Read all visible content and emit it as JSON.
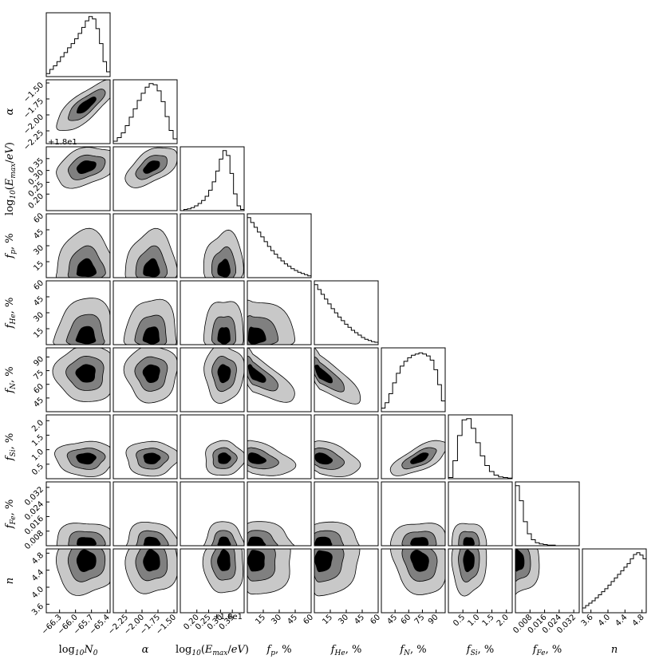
{
  "chart_data": {
    "type": "corner",
    "parameters": [
      {
        "key": "logN0",
        "label": "log10 N0",
        "label_parts": [
          [
            "log",
            "t"
          ],
          [
            "10",
            "sub"
          ],
          [
            "N",
            "it"
          ],
          [
            "0",
            "sub"
          ]
        ],
        "range": [
          -66.55,
          -65.35
        ],
        "ticks": [
          "-66.3",
          "-66.0",
          "-65.7",
          "-65.4"
        ],
        "tick_values": [
          -66.3,
          -66.0,
          -65.7,
          -65.4
        ]
      },
      {
        "key": "alpha",
        "label": "α",
        "label_parts": [
          [
            "α",
            "it"
          ]
        ],
        "range": [
          -2.45,
          -1.45
        ],
        "ticks": [
          "-2.25",
          "-2.00",
          "-1.75",
          "-1.50"
        ],
        "tick_values": [
          -2.25,
          -2.0,
          -1.75,
          -1.5
        ]
      },
      {
        "key": "logEmax",
        "label": "log10(Emax/eV)",
        "label_parts": [
          [
            "log",
            "t"
          ],
          [
            "10",
            "sub"
          ],
          [
            "(",
            "t"
          ],
          [
            "E",
            "it"
          ],
          [
            "max",
            "sub"
          ],
          [
            "/",
            "t"
          ],
          [
            "eV",
            "it"
          ],
          [
            ")",
            "t"
          ]
        ],
        "range": [
          0.13,
          0.4
        ],
        "ticks": [
          "0.20",
          "0.25",
          "0.30",
          "0.35"
        ],
        "tick_values": [
          0.2,
          0.25,
          0.3,
          0.35
        ],
        "offset_text": "+1.8e1"
      },
      {
        "key": "fp",
        "label": "fp, %",
        "label_parts": [
          [
            "f",
            "it"
          ],
          [
            "p",
            "sub"
          ],
          [
            ", %",
            "t"
          ]
        ],
        "range": [
          0,
          60
        ],
        "ticks": [
          "15",
          "30",
          "45",
          "60"
        ],
        "tick_values": [
          15,
          30,
          45,
          60
        ]
      },
      {
        "key": "fHe",
        "label": "fHe, %",
        "label_parts": [
          [
            "f",
            "it"
          ],
          [
            "He",
            "sub"
          ],
          [
            ", %",
            "t"
          ]
        ],
        "range": [
          0,
          60
        ],
        "ticks": [
          "15",
          "30",
          "45",
          "60"
        ],
        "tick_values": [
          15,
          30,
          45,
          60
        ]
      },
      {
        "key": "fN",
        "label": "fN, %",
        "label_parts": [
          [
            "f",
            "it"
          ],
          [
            "N",
            "sub"
          ],
          [
            ", %",
            "t"
          ]
        ],
        "range": [
          30,
          100
        ],
        "ticks": [
          "45",
          "60",
          "75",
          "90"
        ],
        "tick_values": [
          45,
          60,
          75,
          90
        ]
      },
      {
        "key": "fSi",
        "label": "fSi, %",
        "label_parts": [
          [
            "f",
            "it"
          ],
          [
            "Si",
            "sub"
          ],
          [
            ", %",
            "t"
          ]
        ],
        "range": [
          0,
          2.2
        ],
        "ticks": [
          "0.5",
          "1.0",
          "1.5",
          "2.0"
        ],
        "tick_values": [
          0.5,
          1.0,
          1.5,
          2.0
        ]
      },
      {
        "key": "fFe",
        "label": "fFe, %",
        "label_parts": [
          [
            "f",
            "it"
          ],
          [
            "Fe",
            "sub"
          ],
          [
            ", %",
            "t"
          ]
        ],
        "range": [
          0,
          0.035
        ],
        "ticks": [
          "0.008",
          "0.016",
          "0.024",
          "0.032"
        ],
        "tick_values": [
          0.008,
          0.016,
          0.024,
          0.032
        ]
      },
      {
        "key": "n",
        "label": "n",
        "label_parts": [
          [
            "n",
            "it"
          ]
        ],
        "range": [
          3.4,
          4.9
        ],
        "ticks": [
          "3.6",
          "4.0",
          "4.4",
          "4.8"
        ],
        "tick_values": [
          3.6,
          4.0,
          4.4,
          4.8
        ]
      }
    ],
    "histograms": [
      [
        0.05,
        0.12,
        0.18,
        0.25,
        0.33,
        0.4,
        0.48,
        0.55,
        0.63,
        0.72,
        0.82,
        0.93,
        1.0,
        0.96,
        0.8,
        0.55,
        0.25,
        0.08
      ],
      [
        0.04,
        0.1,
        0.18,
        0.3,
        0.44,
        0.58,
        0.72,
        0.84,
        0.94,
        1.0,
        0.98,
        0.88,
        0.7,
        0.45,
        0.22,
        0.08
      ],
      [
        0.0,
        0.02,
        0.03,
        0.05,
        0.08,
        0.12,
        0.17,
        0.24,
        0.34,
        0.48,
        0.66,
        0.86,
        1.0,
        0.92,
        0.62,
        0.28,
        0.08,
        0.02
      ],
      [
        1.0,
        0.92,
        0.84,
        0.76,
        0.68,
        0.6,
        0.52,
        0.45,
        0.39,
        0.33,
        0.28,
        0.23,
        0.19,
        0.15,
        0.12,
        0.09,
        0.07,
        0.05,
        0.03
      ],
      [
        1.0,
        0.92,
        0.84,
        0.76,
        0.68,
        0.6,
        0.53,
        0.46,
        0.4,
        0.34,
        0.29,
        0.24,
        0.2,
        0.16,
        0.12,
        0.09,
        0.07,
        0.05,
        0.04
      ],
      [
        0.06,
        0.15,
        0.3,
        0.48,
        0.64,
        0.76,
        0.84,
        0.9,
        0.94,
        0.96,
        0.98,
        0.96,
        0.93,
        0.86,
        0.7,
        0.45,
        0.18
      ],
      [
        0.02,
        0.3,
        0.72,
        0.98,
        1.0,
        0.84,
        0.6,
        0.38,
        0.22,
        0.12,
        0.06,
        0.03,
        0.02,
        0.01
      ],
      [
        1.0,
        0.75,
        0.4,
        0.2,
        0.1,
        0.05,
        0.03,
        0.02,
        0.01,
        0.01,
        0.0,
        0.0,
        0.0,
        0.0,
        0.0,
        0.0
      ],
      [
        0.08,
        0.12,
        0.16,
        0.2,
        0.25,
        0.3,
        0.35,
        0.4,
        0.46,
        0.52,
        0.58,
        0.64,
        0.7,
        0.76,
        0.82,
        0.9,
        0.97,
        1.0,
        0.96,
        0.9
      ]
    ],
    "contour_levels": [
      "outer",
      "middle",
      "inner"
    ],
    "contour_colors": {
      "outer": "#c8c8c8",
      "middle": "#808080",
      "inner": "#000000",
      "edge": "#000000"
    }
  }
}
